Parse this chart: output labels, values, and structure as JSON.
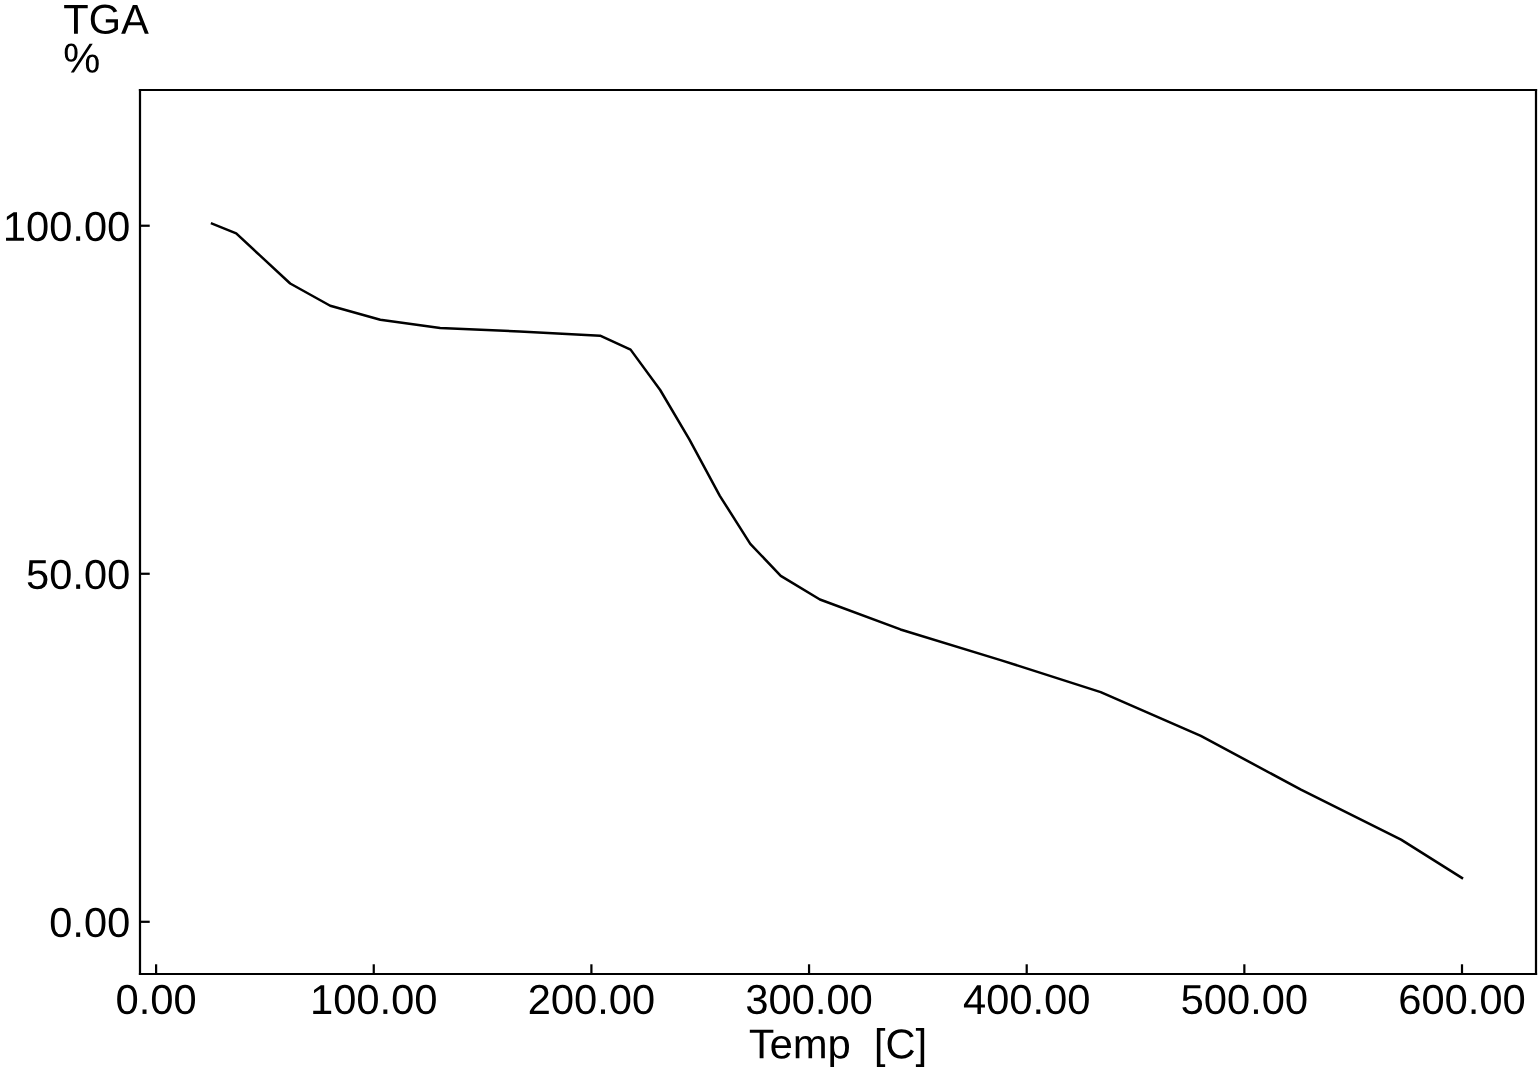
{
  "chart_data": {
    "type": "line",
    "xlabel": "Temp  [C]",
    "ylabel": "TGA\n%",
    "x": [
      25.7,
      36.8,
      47.8,
      61.6,
      80,
      103,
      130.5,
      167,
      204,
      218,
      231.6,
      245,
      259,
      273,
      287,
      305,
      342,
      388,
      434,
      480,
      526,
      572,
      600
    ],
    "series": [
      {
        "color": "#000000",
        "values": [
          100.3,
          98.9,
          95.7,
          91.7,
          88.5,
          86.5,
          85.3,
          84.8,
          84.2,
          82.2,
          76.4,
          69.3,
          61.2,
          54.3,
          49.7,
          46.3,
          42,
          37.6,
          33,
          26.7,
          19,
          11.8,
          6.3
        ]
      }
    ],
    "xlim": [
      -7.4,
      634
    ],
    "ylim": [
      -7.5,
      119.5
    ],
    "xticks": [
      {
        "value": 0,
        "label": "0.00"
      },
      {
        "value": 100,
        "label": "100.00"
      },
      {
        "value": 200,
        "label": "200.00"
      },
      {
        "value": 300,
        "label": "300.00"
      },
      {
        "value": 400,
        "label": "400.00"
      },
      {
        "value": 500,
        "label": "500.00"
      },
      {
        "value": 600,
        "label": "600.00"
      }
    ],
    "yticks": [
      {
        "value": 0,
        "label": "0.00"
      },
      {
        "value": 50,
        "label": "50.00"
      },
      {
        "value": 100,
        "label": "100.00"
      }
    ],
    "grid": false,
    "legend": false,
    "marker": "none",
    "line_style": "solid"
  }
}
